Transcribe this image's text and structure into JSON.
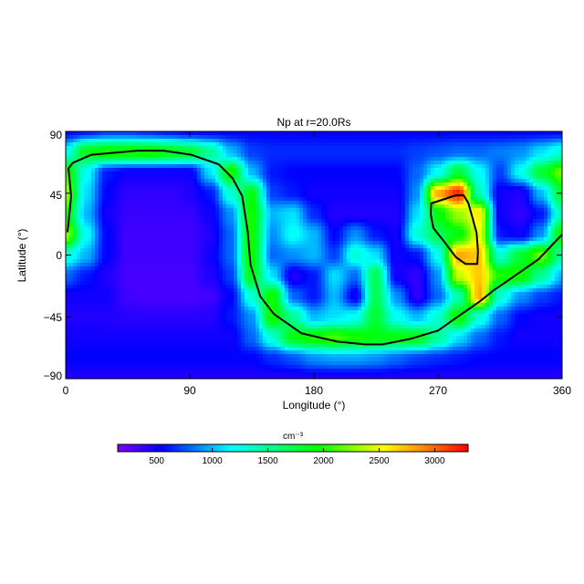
{
  "chart_data": {
    "type": "heatmap",
    "title": "Np at r=20.0Rs",
    "xlabel": "Longitude (°)",
    "ylabel": "Latitude (°)",
    "xlim": [
      0,
      360
    ],
    "ylim": [
      -90,
      90
    ],
    "xticks": [
      "0",
      "90",
      "180",
      "270",
      "360"
    ],
    "yticks": [
      "90",
      "45",
      "0",
      "−45",
      "−90"
    ],
    "grid": false,
    "colorbar": {
      "label": "cm⁻³",
      "range": [
        150,
        3300
      ],
      "ticks": [
        "500",
        "1000",
        "1500",
        "2000",
        "2500",
        "3000"
      ],
      "colormap": [
        {
          "v": 150,
          "c": "#7f00ff"
        },
        {
          "v": 550,
          "c": "#0000ff"
        },
        {
          "v": 1170,
          "c": "#00ffff"
        },
        {
          "v": 1950,
          "c": "#00ff00"
        },
        {
          "v": 2540,
          "c": "#ffff00"
        },
        {
          "v": 3300,
          "c": "#ff0000"
        }
      ]
    },
    "grid_lon": [
      0,
      15,
      30,
      45,
      60,
      75,
      90,
      105,
      120,
      135,
      150,
      165,
      180,
      195,
      210,
      225,
      240,
      255,
      270,
      285,
      300,
      315,
      330,
      345,
      360
    ],
    "grid_lat": [
      90,
      75,
      60,
      45,
      30,
      15,
      0,
      -15,
      -30,
      -45,
      -60,
      -75,
      -90
    ],
    "values": [
      [
        550,
        600,
        700,
        700,
        650,
        600,
        550,
        550,
        550,
        550,
        550,
        550,
        550,
        550,
        550,
        550,
        550,
        550,
        550,
        550,
        550,
        550,
        550,
        550,
        550
      ],
      [
        1200,
        1900,
        2000,
        2000,
        2000,
        1900,
        1800,
        1500,
        1000,
        700,
        650,
        650,
        650,
        650,
        650,
        650,
        650,
        700,
        750,
        800,
        800,
        850,
        900,
        1100,
        1300
      ],
      [
        2100,
        1200,
        600,
        500,
        500,
        500,
        500,
        1100,
        2000,
        1000,
        600,
        550,
        550,
        550,
        550,
        550,
        550,
        800,
        1200,
        1800,
        1200,
        700,
        1200,
        1800,
        2200
      ],
      [
        2300,
        1100,
        550,
        400,
        400,
        400,
        450,
        600,
        1300,
        1900,
        700,
        600,
        500,
        500,
        500,
        500,
        500,
        900,
        2800,
        3200,
        1400,
        500,
        450,
        1000,
        1800
      ],
      [
        2000,
        1000,
        500,
        380,
        380,
        380,
        380,
        500,
        900,
        2000,
        1000,
        1100,
        650,
        450,
        450,
        450,
        450,
        1100,
        1900,
        2300,
        2600,
        500,
        400,
        600,
        1400
      ],
      [
        2300,
        1200,
        550,
        350,
        350,
        350,
        350,
        450,
        800,
        2000,
        900,
        1200,
        1000,
        550,
        900,
        600,
        500,
        1300,
        1700,
        1900,
        2500,
        600,
        500,
        900,
        2000
      ],
      [
        1300,
        1000,
        550,
        350,
        350,
        350,
        350,
        500,
        800,
        2000,
        800,
        900,
        1000,
        700,
        1300,
        1100,
        500,
        600,
        1200,
        2800,
        2700,
        1300,
        1800,
        2200,
        1500
      ],
      [
        800,
        600,
        450,
        330,
        330,
        330,
        330,
        450,
        700,
        1900,
        1100,
        450,
        600,
        1100,
        800,
        1700,
        500,
        400,
        900,
        2400,
        2700,
        2000,
        2000,
        1500,
        1000
      ],
      [
        500,
        500,
        500,
        350,
        330,
        330,
        330,
        350,
        550,
        1300,
        2000,
        800,
        600,
        1000,
        500,
        1700,
        900,
        400,
        800,
        1400,
        2800,
        1300,
        900,
        700,
        600
      ],
      [
        450,
        450,
        450,
        420,
        420,
        420,
        420,
        430,
        600,
        900,
        2000,
        1500,
        1000,
        1100,
        1200,
        1800,
        1200,
        1000,
        1300,
        2000,
        1300,
        800,
        550,
        500,
        500
      ],
      [
        500,
        500,
        500,
        500,
        500,
        500,
        500,
        500,
        500,
        800,
        1300,
        1900,
        2000,
        2100,
        2000,
        1900,
        1900,
        1900,
        1500,
        1100,
        800,
        600,
        500,
        500,
        500
      ],
      [
        550,
        550,
        550,
        550,
        550,
        550,
        550,
        550,
        550,
        550,
        650,
        750,
        900,
        950,
        950,
        900,
        800,
        700,
        650,
        600,
        550,
        550,
        550,
        550,
        550
      ],
      [
        450,
        450,
        450,
        450,
        450,
        450,
        450,
        450,
        450,
        450,
        450,
        450,
        450,
        450,
        450,
        450,
        450,
        450,
        450,
        450,
        450,
        450,
        450,
        450,
        450
      ]
    ],
    "contours": [
      {
        "color": "#000000",
        "points": [
          [
            1.3,
            16.6
          ],
          [
            4,
            43
          ],
          [
            2,
            63
          ],
          [
            5,
            67
          ],
          [
            18.5,
            73
          ],
          [
            52,
            76
          ],
          [
            71,
            76
          ],
          [
            91,
            73
          ],
          [
            111,
            66
          ],
          [
            121,
            56
          ],
          [
            128,
            43
          ],
          [
            132,
            17
          ],
          [
            134,
            -7
          ],
          [
            141,
            -30
          ],
          [
            151,
            -43
          ],
          [
            171,
            -57
          ],
          [
            197,
            -63
          ],
          [
            217,
            -65
          ],
          [
            230,
            -65
          ],
          [
            250,
            -61
          ],
          [
            270,
            -55
          ],
          [
            287,
            -43
          ],
          [
            300,
            -34
          ],
          [
            310,
            -26
          ],
          [
            323,
            -17
          ],
          [
            343,
            -3
          ],
          [
            360,
            15
          ]
        ]
      },
      {
        "color": "#000000",
        "closed": true,
        "points": [
          [
            265,
            37.5
          ],
          [
            283,
            43.5
          ],
          [
            288.5,
            43.5
          ],
          [
            292,
            38
          ],
          [
            294.5,
            29
          ],
          [
            298,
            16
          ],
          [
            299,
            3
          ],
          [
            298.5,
            -6.5
          ],
          [
            290,
            -6.5
          ],
          [
            283,
            -1.5
          ],
          [
            274.5,
            9.7
          ],
          [
            266.7,
            19.6
          ],
          [
            264.7,
            29.6
          ]
        ]
      }
    ]
  }
}
